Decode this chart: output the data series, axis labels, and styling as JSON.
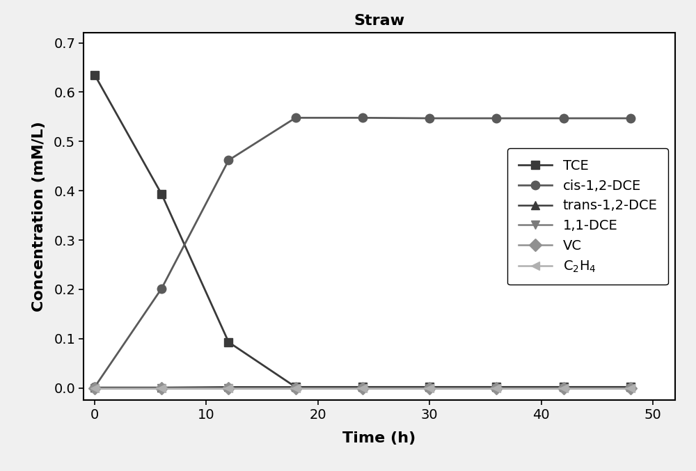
{
  "title": "Straw",
  "xlabel": "Time (h)",
  "ylabel": "Concentration (mM/L)",
  "xlim": [
    -1,
    52
  ],
  "ylim": [
    -0.025,
    0.72
  ],
  "xticks": [
    0,
    10,
    20,
    30,
    40,
    50
  ],
  "yticks": [
    0.0,
    0.1,
    0.2,
    0.3,
    0.4,
    0.5,
    0.6,
    0.7
  ],
  "series": [
    {
      "label": "TCE",
      "x": [
        0,
        6,
        12,
        18,
        24,
        30,
        36,
        42,
        48
      ],
      "y": [
        0.635,
        0.393,
        0.093,
        0.002,
        0.002,
        0.002,
        0.002,
        0.002,
        0.002
      ],
      "color": "#3a3a3a",
      "marker": "s",
      "markersize": 9,
      "linewidth": 2.0
    },
    {
      "label": "cis-1,2-DCE",
      "x": [
        0,
        6,
        12,
        18,
        24,
        30,
        36,
        42,
        48
      ],
      "y": [
        0.002,
        0.202,
        0.462,
        0.548,
        0.548,
        0.547,
        0.547,
        0.547,
        0.547
      ],
      "color": "#5a5a5a",
      "marker": "o",
      "markersize": 9,
      "linewidth": 2.0
    },
    {
      "label": "trans-1,2-DCE",
      "x": [
        0,
        6,
        12,
        18,
        24,
        30,
        36,
        42,
        48
      ],
      "y": [
        0.001,
        0.001,
        0.002,
        0.002,
        0.002,
        0.002,
        0.002,
        0.002,
        0.002
      ],
      "color": "#3a3a3a",
      "marker": "^",
      "markersize": 9,
      "linewidth": 1.8
    },
    {
      "label": "1,1-DCE",
      "x": [
        0,
        6,
        12,
        18,
        24,
        30,
        36,
        42,
        48
      ],
      "y": [
        0.0,
        0.0,
        0.0,
        0.0,
        0.0,
        0.0,
        0.0,
        0.0,
        0.0
      ],
      "color": "#7a7a7a",
      "marker": "v",
      "markersize": 9,
      "linewidth": 1.8
    },
    {
      "label": "VC",
      "x": [
        0,
        6,
        12,
        18,
        24,
        30,
        36,
        42,
        48
      ],
      "y": [
        0.0,
        0.0,
        0.0,
        0.0,
        0.0,
        0.0,
        0.0,
        0.0,
        0.0
      ],
      "color": "#909090",
      "marker": "D",
      "markersize": 9,
      "linewidth": 1.8
    },
    {
      "label": "C$_2$H$_4$",
      "x": [
        0,
        6,
        12,
        18,
        24,
        30,
        36,
        42,
        48
      ],
      "y": [
        0.0,
        0.0,
        0.0,
        0.0,
        0.0,
        0.0,
        0.0,
        0.0,
        0.0
      ],
      "color": "#b0b0b0",
      "marker": "<",
      "markersize": 9,
      "linewidth": 1.8
    }
  ],
  "legend_loc": "center right",
  "legend_fontsize": 14,
  "title_fontsize": 16,
  "axis_label_fontsize": 16,
  "tick_fontsize": 14,
  "title_fontweight": "bold",
  "axis_label_fontweight": "bold",
  "figure_facecolor": "#f0f0f0",
  "axes_facecolor": "#ffffff"
}
